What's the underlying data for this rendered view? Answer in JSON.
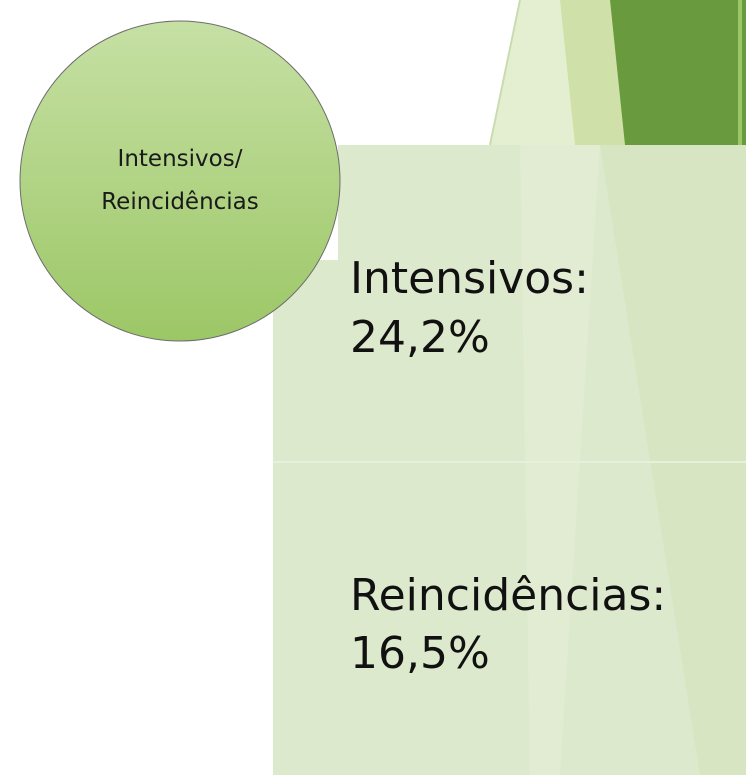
{
  "circle": {
    "lines": [
      "Intensivos/",
      "Reincidências"
    ]
  },
  "items": [
    {
      "label": "Intensivos:",
      "value": "24,2%"
    },
    {
      "label": "Reincidências:",
      "value": "16,5%"
    }
  ]
}
